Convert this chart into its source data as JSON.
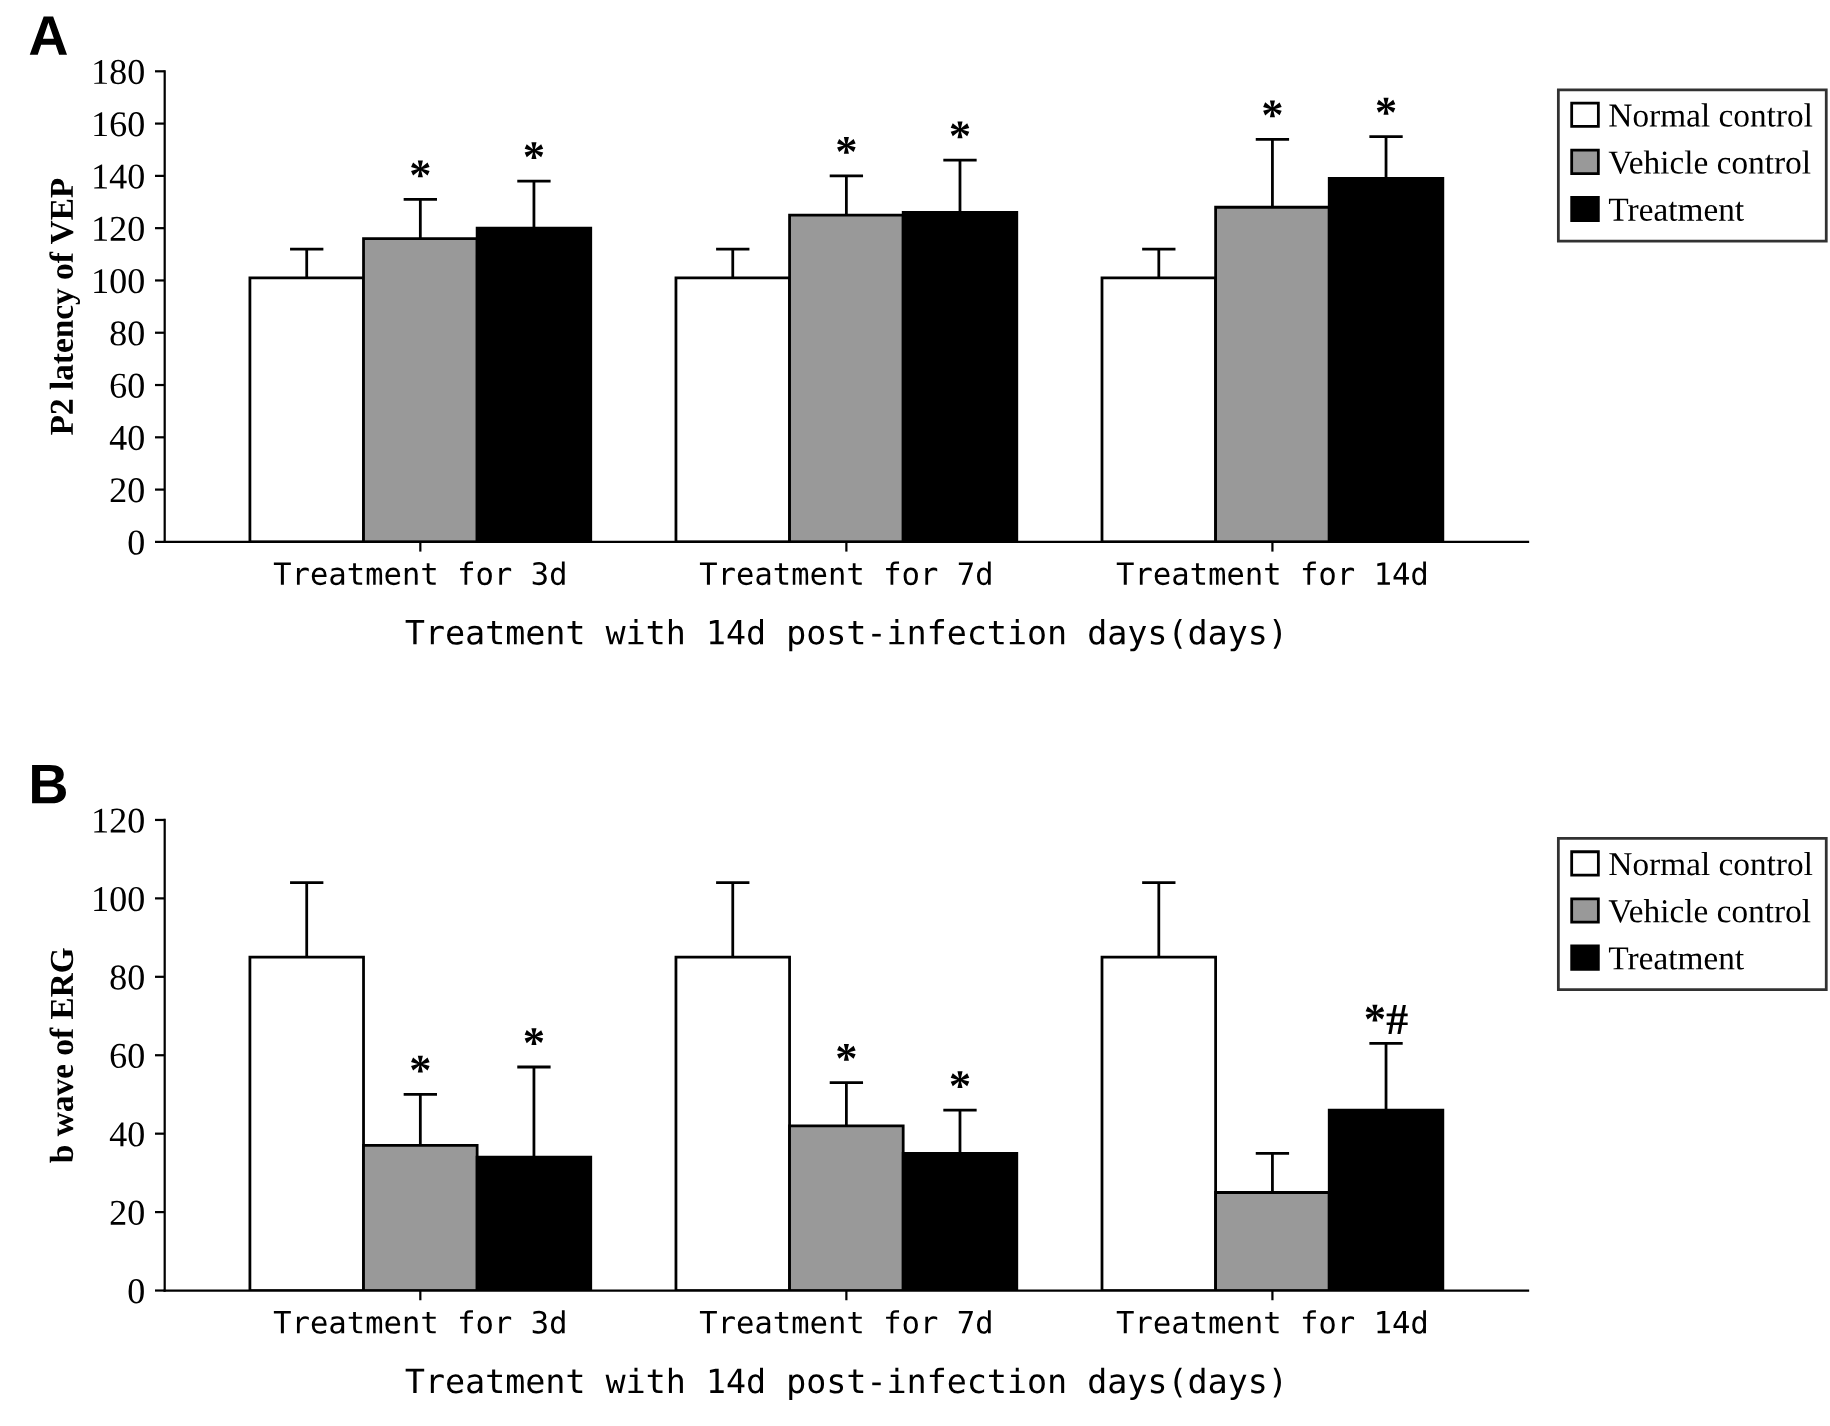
{
  "chart_data": [
    {
      "type": "bar",
      "title": "A",
      "ylabel": "P2 latency of VEP",
      "xlabel": "Treatment with 14d post-infection days(days)",
      "categories": [
        "Treatment for 3d",
        "Treatment for 7d",
        "Treatment for 14d"
      ],
      "series": [
        {
          "name": "Normal control",
          "color": "#ffffff",
          "values": [
            101,
            101,
            101
          ],
          "errors": [
            11,
            11,
            11
          ]
        },
        {
          "name": "Vehicle control",
          "color": "#999999",
          "values": [
            116,
            125,
            128
          ],
          "errors": [
            15,
            15,
            26
          ],
          "value_labels": [
            "*",
            "*",
            "*"
          ]
        },
        {
          "name": "Treatment",
          "color": "#000000",
          "values": [
            120,
            126,
            139
          ],
          "errors": [
            18,
            20,
            16
          ],
          "value_labels": [
            "*",
            "*",
            "*"
          ]
        }
      ],
      "ylim": [
        0,
        180
      ],
      "yticks": [
        0,
        20,
        40,
        60,
        80,
        100,
        120,
        140,
        160,
        180
      ],
      "legend": "right"
    },
    {
      "type": "bar",
      "title": "B",
      "ylabel": "b wave of ERG",
      "xlabel": "Treatment with 14d post-infection days(days)",
      "categories": [
        "Treatment for 3d",
        "Treatment for 7d",
        "Treatment for 14d"
      ],
      "series": [
        {
          "name": "Normal control",
          "color": "#ffffff",
          "values": [
            85,
            85,
            85
          ],
          "errors": [
            19,
            19,
            19
          ]
        },
        {
          "name": "Vehicle control",
          "color": "#999999",
          "values": [
            37,
            42,
            25
          ],
          "errors": [
            13,
            11,
            10
          ],
          "value_labels": [
            "*",
            "*",
            null
          ]
        },
        {
          "name": "Treatment",
          "color": "#000000",
          "values": [
            34,
            35,
            46
          ],
          "errors": [
            23,
            11,
            17
          ],
          "value_labels": [
            "*",
            "*",
            "*#"
          ]
        }
      ],
      "ylim": [
        0,
        120
      ],
      "yticks": [
        0,
        20,
        40,
        60,
        80,
        100,
        120
      ],
      "legend": "right"
    }
  ]
}
